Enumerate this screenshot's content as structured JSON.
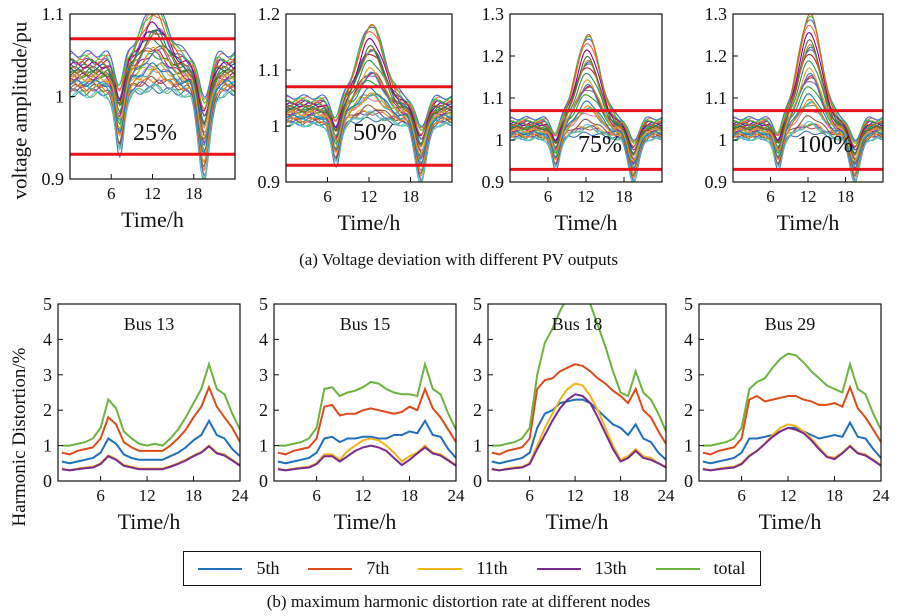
{
  "captions": {
    "a": "(a) Voltage deviation with different PV outputs",
    "b": "(b) maximum harmonic distortion rate at different nodes"
  },
  "colors": {
    "limit_line": "#e8141a",
    "series": [
      "#1f6fbf",
      "#de4b1a",
      "#f2b21a",
      "#7a2a8e",
      "#6cb33f"
    ]
  },
  "chart_data": [
    {
      "type": "line",
      "panel": "voltage-1",
      "label": "25%",
      "ylabel": "voltage amplitude/pu",
      "xlabel": "Time/h",
      "xlim": [
        0,
        24
      ],
      "ylim": [
        0.9,
        1.1
      ],
      "yticks": [
        "0.9",
        "1",
        "1.1"
      ],
      "xticks": [
        "6",
        "12",
        "18"
      ],
      "limits": [
        1.07,
        0.93
      ],
      "peak": 1.1,
      "line_count": 30,
      "note": "many overlapping node voltage curves"
    },
    {
      "type": "line",
      "panel": "voltage-2",
      "label": "50%",
      "xlabel": "Time/h",
      "xlim": [
        0,
        24
      ],
      "ylim": [
        0.9,
        1.2
      ],
      "yticks": [
        "0.9",
        "1",
        "1.1",
        "1.2"
      ],
      "xticks": [
        "6",
        "12",
        "18"
      ],
      "limits": [
        1.07,
        0.93
      ],
      "peak": 1.18,
      "line_count": 30
    },
    {
      "type": "line",
      "panel": "voltage-3",
      "label": "75%",
      "xlabel": "Time/h",
      "xlim": [
        0,
        24
      ],
      "ylim": [
        0.9,
        1.3
      ],
      "yticks": [
        "0.9",
        "1",
        "1.1",
        "1.2",
        "1.3"
      ],
      "xticks": [
        "6",
        "12",
        "18"
      ],
      "limits": [
        1.07,
        0.93
      ],
      "peak": 1.25,
      "line_count": 30
    },
    {
      "type": "line",
      "panel": "voltage-4",
      "label": "100%",
      "xlabel": "Time/h",
      "xlim": [
        0,
        24
      ],
      "ylim": [
        0.9,
        1.3
      ],
      "yticks": [
        "0.9",
        "1",
        "1.1",
        "1.2",
        "1.3"
      ],
      "xticks": [
        "6",
        "12",
        "18"
      ],
      "limits": [
        1.07,
        0.93
      ],
      "peak": 1.3,
      "line_count": 30
    },
    {
      "type": "line",
      "panel": "harmonic-1",
      "title": "Bus 13",
      "ylabel": "Harmonic Distortion/%",
      "xlabel": "Time/h",
      "xlim": [
        1,
        24
      ],
      "ylim": [
        0,
        5
      ],
      "yticks": [
        "0",
        "1",
        "2",
        "3",
        "4",
        "5"
      ],
      "xticks": [
        "6",
        "12",
        "18",
        "24"
      ],
      "x": [
        1,
        2,
        3,
        4,
        5,
        6,
        7,
        8,
        9,
        10,
        11,
        12,
        13,
        14,
        15,
        16,
        17,
        18,
        19,
        20,
        21,
        22,
        23,
        24
      ],
      "series": [
        {
          "name": "5th",
          "values": [
            0.55,
            0.5,
            0.55,
            0.6,
            0.65,
            0.8,
            1.2,
            1.05,
            0.75,
            0.65,
            0.6,
            0.6,
            0.6,
            0.6,
            0.7,
            0.8,
            0.95,
            1.15,
            1.3,
            1.7,
            1.3,
            1.2,
            0.9,
            0.7
          ]
        },
        {
          "name": "7th",
          "values": [
            0.8,
            0.75,
            0.85,
            0.9,
            0.95,
            1.2,
            1.8,
            1.6,
            1.1,
            0.95,
            0.85,
            0.85,
            0.85,
            0.85,
            1.0,
            1.2,
            1.45,
            1.8,
            2.1,
            2.65,
            2.1,
            1.8,
            1.5,
            1.1
          ]
        },
        {
          "name": "11th",
          "values": [
            0.35,
            0.3,
            0.35,
            0.38,
            0.4,
            0.5,
            0.72,
            0.62,
            0.45,
            0.4,
            0.35,
            0.35,
            0.35,
            0.35,
            0.42,
            0.5,
            0.6,
            0.72,
            0.82,
            1.0,
            0.8,
            0.75,
            0.6,
            0.45
          ]
        },
        {
          "name": "13th",
          "values": [
            0.33,
            0.3,
            0.33,
            0.36,
            0.38,
            0.48,
            0.7,
            0.6,
            0.43,
            0.38,
            0.33,
            0.33,
            0.33,
            0.33,
            0.4,
            0.48,
            0.58,
            0.7,
            0.8,
            0.98,
            0.78,
            0.72,
            0.58,
            0.43
          ]
        },
        {
          "name": "total",
          "values": [
            1.0,
            1.0,
            1.05,
            1.1,
            1.2,
            1.5,
            2.3,
            2.05,
            1.4,
            1.2,
            1.05,
            1.0,
            1.05,
            1.0,
            1.2,
            1.45,
            1.8,
            2.2,
            2.6,
            3.3,
            2.6,
            2.45,
            1.9,
            1.45
          ]
        }
      ]
    },
    {
      "type": "line",
      "panel": "harmonic-2",
      "title": "Bus 15",
      "xlabel": "Time/h",
      "xlim": [
        1,
        24
      ],
      "ylim": [
        0,
        5
      ],
      "yticks": [
        "0",
        "1",
        "2",
        "3",
        "4",
        "5"
      ],
      "xticks": [
        "6",
        "12",
        "18",
        "24"
      ],
      "x": [
        1,
        2,
        3,
        4,
        5,
        6,
        7,
        8,
        9,
        10,
        11,
        12,
        13,
        14,
        15,
        16,
        17,
        18,
        19,
        20,
        21,
        22,
        23,
        24
      ],
      "series": [
        {
          "name": "5th",
          "values": [
            0.55,
            0.5,
            0.55,
            0.6,
            0.65,
            0.8,
            1.2,
            1.25,
            1.1,
            1.2,
            1.2,
            1.25,
            1.25,
            1.2,
            1.2,
            1.3,
            1.3,
            1.4,
            1.35,
            1.7,
            1.3,
            1.25,
            0.9,
            0.65
          ]
        },
        {
          "name": "7th",
          "values": [
            0.8,
            0.75,
            0.85,
            0.9,
            0.95,
            1.2,
            2.1,
            2.15,
            1.85,
            1.9,
            1.9,
            2.0,
            2.05,
            2.0,
            1.95,
            1.9,
            1.95,
            2.1,
            2.0,
            2.6,
            2.05,
            1.8,
            1.45,
            1.1
          ]
        },
        {
          "name": "11th",
          "values": [
            0.35,
            0.3,
            0.35,
            0.38,
            0.4,
            0.5,
            0.75,
            0.75,
            0.6,
            0.85,
            1.0,
            1.15,
            1.2,
            1.15,
            1.0,
            0.8,
            0.55,
            0.7,
            0.8,
            1.0,
            0.8,
            0.75,
            0.6,
            0.45
          ]
        },
        {
          "name": "13th",
          "values": [
            0.33,
            0.3,
            0.33,
            0.36,
            0.38,
            0.48,
            0.7,
            0.7,
            0.55,
            0.7,
            0.85,
            0.95,
            1.0,
            0.95,
            0.85,
            0.65,
            0.45,
            0.6,
            0.78,
            0.95,
            0.78,
            0.72,
            0.58,
            0.43
          ]
        },
        {
          "name": "total",
          "values": [
            1.0,
            1.0,
            1.05,
            1.1,
            1.2,
            1.5,
            2.6,
            2.65,
            2.4,
            2.5,
            2.55,
            2.65,
            2.8,
            2.75,
            2.6,
            2.5,
            2.45,
            2.45,
            2.4,
            3.3,
            2.6,
            2.45,
            1.9,
            1.45
          ]
        }
      ]
    },
    {
      "type": "line",
      "panel": "harmonic-3",
      "title": "Bus 18",
      "xlabel": "Time/h",
      "xlim": [
        1,
        24
      ],
      "ylim": [
        0,
        5
      ],
      "yticks": [
        "0",
        "1",
        "2",
        "3",
        "4",
        "5"
      ],
      "xticks": [
        "6",
        "12",
        "18",
        "24"
      ],
      "x": [
        1,
        2,
        3,
        4,
        5,
        6,
        7,
        8,
        9,
        10,
        11,
        12,
        13,
        14,
        15,
        16,
        17,
        18,
        19,
        20,
        21,
        22,
        23,
        24
      ],
      "series": [
        {
          "name": "5th",
          "values": [
            0.55,
            0.5,
            0.55,
            0.6,
            0.65,
            0.8,
            1.5,
            1.9,
            2.0,
            2.2,
            2.25,
            2.3,
            2.3,
            2.2,
            2.0,
            1.8,
            1.6,
            1.5,
            1.3,
            1.6,
            1.2,
            1.1,
            0.8,
            0.6
          ]
        },
        {
          "name": "7th",
          "values": [
            0.8,
            0.75,
            0.85,
            0.9,
            0.95,
            1.2,
            2.6,
            2.85,
            2.9,
            3.1,
            3.2,
            3.3,
            3.25,
            3.1,
            2.9,
            2.75,
            2.55,
            2.4,
            2.2,
            2.6,
            2.0,
            1.8,
            1.4,
            1.05
          ]
        },
        {
          "name": "11th",
          "values": [
            0.35,
            0.3,
            0.35,
            0.38,
            0.4,
            0.5,
            1.0,
            1.5,
            1.9,
            2.3,
            2.6,
            2.75,
            2.7,
            2.4,
            2.0,
            1.5,
            1.0,
            0.6,
            0.7,
            0.9,
            0.7,
            0.65,
            0.5,
            0.4
          ]
        },
        {
          "name": "13th",
          "values": [
            0.33,
            0.3,
            0.33,
            0.36,
            0.38,
            0.48,
            0.9,
            1.3,
            1.7,
            2.05,
            2.3,
            2.45,
            2.4,
            2.2,
            1.8,
            1.35,
            0.9,
            0.55,
            0.65,
            0.85,
            0.65,
            0.6,
            0.5,
            0.38
          ]
        },
        {
          "name": "total",
          "values": [
            1.0,
            1.0,
            1.05,
            1.1,
            1.2,
            1.5,
            3.0,
            3.9,
            4.3,
            4.8,
            5.2,
            5.6,
            5.5,
            5.0,
            4.4,
            3.8,
            3.1,
            2.5,
            2.4,
            3.1,
            2.5,
            2.3,
            1.9,
            1.4
          ]
        }
      ]
    },
    {
      "type": "line",
      "panel": "harmonic-4",
      "title": "Bus 29",
      "xlabel": "Time/h",
      "xlim": [
        1,
        24
      ],
      "ylim": [
        0,
        5
      ],
      "yticks": [
        "0",
        "1",
        "2",
        "3",
        "4",
        "5"
      ],
      "xticks": [
        "6",
        "12",
        "18",
        "24"
      ],
      "x": [
        1,
        2,
        3,
        4,
        5,
        6,
        7,
        8,
        9,
        10,
        11,
        12,
        13,
        14,
        15,
        16,
        17,
        18,
        19,
        20,
        21,
        22,
        23,
        24
      ],
      "series": [
        {
          "name": "5th",
          "values": [
            0.55,
            0.5,
            0.55,
            0.6,
            0.65,
            0.8,
            1.2,
            1.2,
            1.25,
            1.3,
            1.4,
            1.5,
            1.5,
            1.4,
            1.3,
            1.2,
            1.25,
            1.3,
            1.25,
            1.65,
            1.25,
            1.2,
            0.9,
            0.65
          ]
        },
        {
          "name": "7th",
          "values": [
            0.8,
            0.75,
            0.85,
            0.9,
            0.95,
            1.2,
            2.3,
            2.4,
            2.25,
            2.3,
            2.35,
            2.4,
            2.4,
            2.3,
            2.25,
            2.15,
            2.15,
            2.2,
            2.1,
            2.65,
            2.05,
            1.8,
            1.45,
            1.1
          ]
        },
        {
          "name": "11th",
          "values": [
            0.35,
            0.3,
            0.35,
            0.38,
            0.4,
            0.5,
            0.72,
            0.85,
            1.05,
            1.3,
            1.5,
            1.6,
            1.55,
            1.4,
            1.2,
            0.95,
            0.7,
            0.65,
            0.8,
            1.0,
            0.8,
            0.75,
            0.6,
            0.45
          ]
        },
        {
          "name": "13th",
          "values": [
            0.33,
            0.3,
            0.33,
            0.36,
            0.38,
            0.48,
            0.7,
            0.85,
            1.05,
            1.25,
            1.4,
            1.5,
            1.45,
            1.35,
            1.15,
            0.9,
            0.68,
            0.62,
            0.78,
            0.98,
            0.78,
            0.72,
            0.58,
            0.43
          ]
        },
        {
          "name": "total",
          "values": [
            1.0,
            1.0,
            1.05,
            1.1,
            1.2,
            1.5,
            2.6,
            2.8,
            2.9,
            3.2,
            3.45,
            3.6,
            3.55,
            3.35,
            3.1,
            2.9,
            2.7,
            2.6,
            2.5,
            3.3,
            2.6,
            2.45,
            1.9,
            1.45
          ]
        }
      ]
    }
  ],
  "legend": [
    "5th",
    "7th",
    "11th",
    "13th",
    "total"
  ]
}
